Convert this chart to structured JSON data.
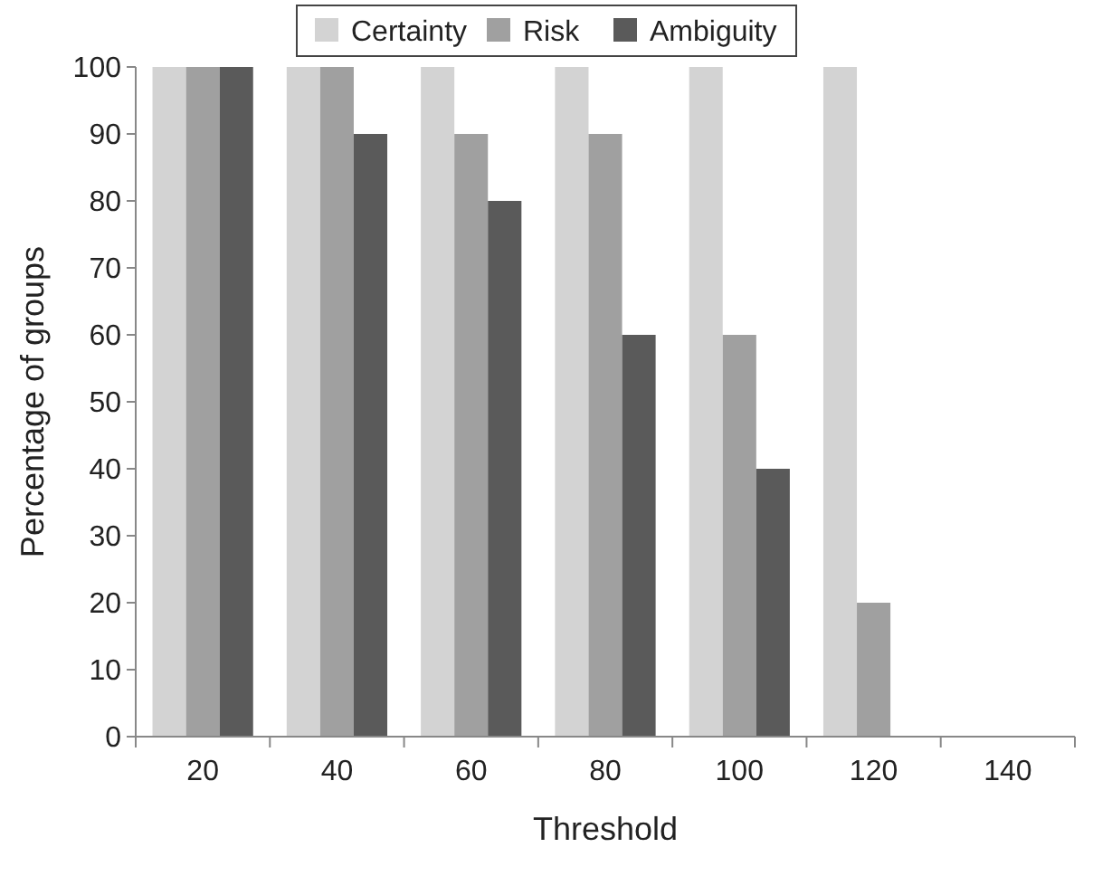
{
  "chart_data": {
    "type": "bar",
    "xlabel": "Threshold",
    "ylabel": "Percentage of groups",
    "categories": [
      "20",
      "40",
      "60",
      "80",
      "100",
      "120",
      "140"
    ],
    "series": [
      {
        "name": "Certainty",
        "color": "#d3d3d3",
        "values": [
          100,
          100,
          100,
          100,
          100,
          100,
          0
        ]
      },
      {
        "name": "Risk",
        "color": "#a0a0a0",
        "values": [
          100,
          100,
          90,
          90,
          60,
          20,
          0
        ]
      },
      {
        "name": "Ambiguity",
        "color": "#5a5a5a",
        "values": [
          100,
          90,
          80,
          60,
          40,
          0,
          0
        ]
      }
    ],
    "ylim": [
      0,
      100
    ],
    "yticks": [
      0,
      10,
      20,
      30,
      40,
      50,
      60,
      70,
      80,
      90,
      100
    ],
    "grid": false,
    "legend": "top"
  }
}
